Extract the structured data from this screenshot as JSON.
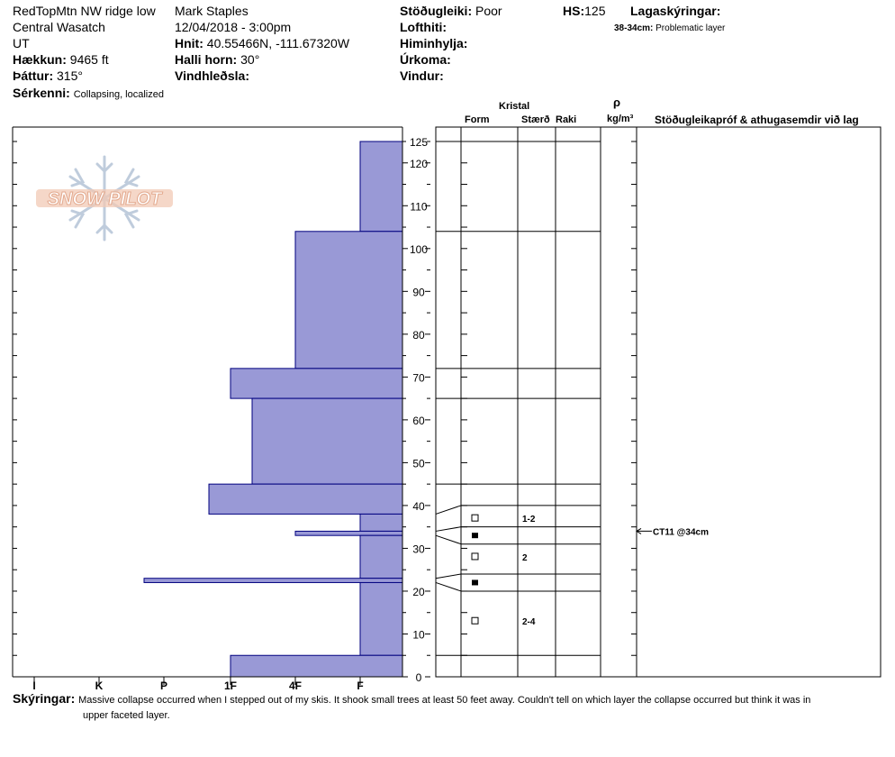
{
  "header": {
    "location": "RedTopMtn NW ridge low",
    "range": "Central Wasatch",
    "state": "UT",
    "elevation_label": "Hækkun:",
    "elevation_value": "9465 ft",
    "aspect_label": "Þáttur:",
    "aspect_value": "315°",
    "observer": "Mark Staples",
    "datetime": "12/04/2018 - 3:00pm",
    "coords_label": "Hnit:",
    "coords_value": "40.55466N, -111.67320W",
    "slope_label": "Halli horn:",
    "slope_value": "30°",
    "wind_loading_label": "Vindhleðsla:",
    "stability_label": "Stöðugleiki:",
    "stability_value": "Poor",
    "hs_label": "HS:",
    "hs_value": "125",
    "air_temp_label": "Lofthiti:",
    "sky_label": "Himinhylja:",
    "precip_label": "Úrkoma:",
    "wind_label": "Vindur:",
    "layer_notes_label": "Lagaskýringar:",
    "layer_note_range": "38-34cm:",
    "layer_note_text": "Problematic layer",
    "features_label": "Sérkenni:",
    "features_value": "Collapsing, localized"
  },
  "columns": {
    "crystal": "Kristal",
    "form": "Form",
    "size": "Stærð",
    "moisture": "Raki",
    "rho": "ρ",
    "density_unit": "kg/m³",
    "tests_header": "Stöðugleikapróf & athugasemdir við lag"
  },
  "logo_text": "SNOW PILOT",
  "footer": {
    "notes_label": "Skýringar:",
    "notes_text_1": "Massive collapse occurred when I stepped out of my skis. It shook small trees at least 50 feet away. Couldn't tell on which layer the collapse occurred but think it was in",
    "notes_text_2": "upper faceted layer."
  },
  "colors": {
    "hardness_fill": "#9999d6",
    "hardness_stroke": "#00007f"
  },
  "chart_data": {
    "type": "snow-profile",
    "depth_axis": {
      "ticks": [
        0,
        10,
        20,
        30,
        40,
        50,
        60,
        70,
        80,
        90,
        100,
        110,
        120,
        125
      ],
      "range": [
        0,
        125
      ]
    },
    "hardness_axis": {
      "labels": [
        "I",
        "K",
        "P",
        "1F",
        "4F",
        "F"
      ]
    },
    "hardness_layers": [
      {
        "top": 125,
        "bottom": 104,
        "hardness": "F"
      },
      {
        "top": 104,
        "bottom": 72,
        "hardness": "4F"
      },
      {
        "top": 72,
        "bottom": 65,
        "hardness": "1F"
      },
      {
        "top": 65,
        "bottom": 45,
        "hardness": "1F+"
      },
      {
        "top": 45,
        "bottom": 38,
        "hardness": "P+"
      },
      {
        "top": 38,
        "bottom": 34,
        "hardness": "F"
      },
      {
        "top": 34,
        "bottom": 33,
        "hardness": "4F"
      },
      {
        "top": 33,
        "bottom": 23,
        "hardness": "F"
      },
      {
        "top": 23,
        "bottom": 22,
        "hardness": "P-"
      },
      {
        "top": 22,
        "bottom": 5,
        "hardness": "F"
      },
      {
        "top": 5,
        "bottom": 0,
        "hardness": "1F"
      }
    ],
    "layer_boundaries": [
      125,
      104,
      72,
      65,
      45,
      40,
      35,
      31,
      24,
      20,
      5
    ],
    "crystal_rows": [
      {
        "depth": 37,
        "symbol": "faceted",
        "size": "1-2"
      },
      {
        "depth": 33,
        "symbol": "surface-hoar",
        "size": ""
      },
      {
        "depth": 28,
        "symbol": "faceted",
        "size": "2"
      },
      {
        "depth": 22,
        "symbol": "surface-hoar",
        "size": ""
      },
      {
        "depth": 13,
        "symbol": "faceted",
        "size": "2-4"
      }
    ],
    "test_results": [
      {
        "depth": 34,
        "text": "CT11 @34cm"
      }
    ]
  }
}
